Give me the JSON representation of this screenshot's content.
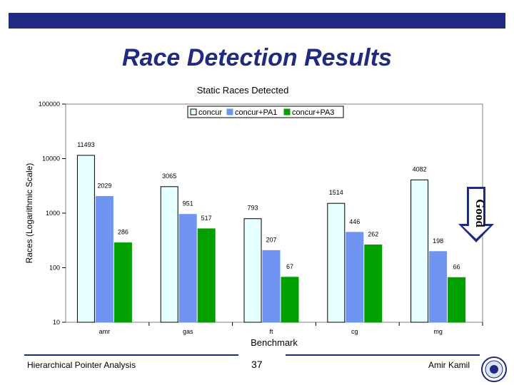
{
  "slide": {
    "title": "Race Detection Results",
    "footer_left": "Hierarchical Pointer Analysis",
    "page_number": "37",
    "footer_right": "Amir Kamil",
    "badge_text": "Good"
  },
  "colors": {
    "accent": "#1f2a80",
    "concur": "#e6ffff",
    "concur_pa1": "#6f94f2",
    "concur_pa3": "#00a000"
  },
  "chart_data": {
    "type": "bar",
    "title": "Static Races Detected",
    "xlabel": "Benchmark",
    "ylabel": "Races (Logarithmic Scale)",
    "yscale": "log",
    "ylim": [
      10,
      100000
    ],
    "yticks": [
      "10",
      "100",
      "1000",
      "10000",
      "100000"
    ],
    "categories": [
      "amr",
      "gas",
      "ft",
      "cg",
      "mg"
    ],
    "series": [
      {
        "name": "concur",
        "values": [
          11493,
          3065,
          793,
          1514,
          4082
        ],
        "labels": [
          "11493",
          "3065",
          "793",
          "1514",
          "4082"
        ]
      },
      {
        "name": "concur+PA1",
        "values": [
          2029,
          951,
          207,
          446,
          198
        ],
        "labels": [
          "2029",
          "951",
          "207",
          "446",
          "198"
        ]
      },
      {
        "name": "concur+PA3",
        "values": [
          286,
          517,
          67,
          262,
          66
        ],
        "labels": [
          "286",
          "517",
          "67",
          "262",
          "66"
        ]
      }
    ],
    "legend_position": "top-right",
    "grid": false
  }
}
